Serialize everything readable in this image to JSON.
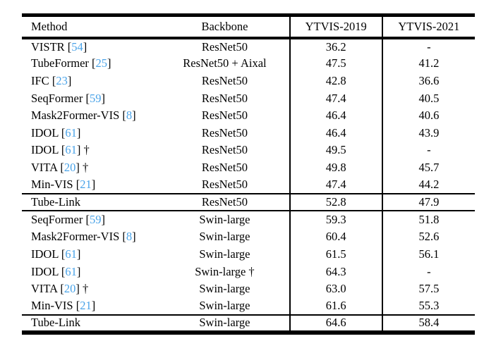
{
  "colors": {
    "text": "#000000",
    "background": "#ffffff",
    "rule": "#000000",
    "citation": "#4AA3E8"
  },
  "table": {
    "headers": [
      "Method",
      "Backbone",
      "YTVIS-2019",
      "YTVIS-2021"
    ],
    "missing_value": "-",
    "dagger_symbol": "†",
    "rows": [
      {
        "method": "VISTR",
        "cite": "54",
        "method_note": "",
        "backbone": "ResNet50",
        "backbone_note": "",
        "ytvis2019": "36.2",
        "ytvis2021": "-",
        "rule_above": false
      },
      {
        "method": "TubeFormer",
        "cite": "25",
        "method_note": "",
        "backbone": "ResNet50 + Aixal",
        "backbone_note": "",
        "ytvis2019": "47.5",
        "ytvis2021": "41.2",
        "rule_above": false
      },
      {
        "method": "IFC",
        "cite": "23",
        "method_note": "",
        "backbone": "ResNet50",
        "backbone_note": "",
        "ytvis2019": "42.8",
        "ytvis2021": "36.6",
        "rule_above": false
      },
      {
        "method": "SeqFormer",
        "cite": "59",
        "method_note": "",
        "backbone": "ResNet50",
        "backbone_note": "",
        "ytvis2019": "47.4",
        "ytvis2021": "40.5",
        "rule_above": false
      },
      {
        "method": "Mask2Former-VIS",
        "cite": "8",
        "method_note": "",
        "backbone": "ResNet50",
        "backbone_note": "",
        "ytvis2019": "46.4",
        "ytvis2021": "40.6",
        "rule_above": false
      },
      {
        "method": "IDOL",
        "cite": "61",
        "method_note": "",
        "backbone": "ResNet50",
        "backbone_note": "",
        "ytvis2019": "46.4",
        "ytvis2021": "43.9",
        "rule_above": false
      },
      {
        "method": "IDOL",
        "cite": "61",
        "method_note": "†",
        "backbone": "ResNet50",
        "backbone_note": "",
        "ytvis2019": "49.5",
        "ytvis2021": "-",
        "rule_above": false
      },
      {
        "method": "VITA",
        "cite": "20",
        "method_note": "†",
        "backbone": "ResNet50",
        "backbone_note": "",
        "ytvis2019": "49.8",
        "ytvis2021": "45.7",
        "rule_above": false
      },
      {
        "method": "Min-VIS",
        "cite": "21",
        "method_note": "",
        "backbone": "ResNet50",
        "backbone_note": "",
        "ytvis2019": "47.4",
        "ytvis2021": "44.2",
        "rule_above": false
      },
      {
        "method": "Tube-Link",
        "cite": null,
        "method_note": "",
        "backbone": "ResNet50",
        "backbone_note": "",
        "ytvis2019": "52.8",
        "ytvis2021": "47.9",
        "rule_above": true
      },
      {
        "method": "SeqFormer",
        "cite": "59",
        "method_note": "",
        "backbone": "Swin-large",
        "backbone_note": "",
        "ytvis2019": "59.3",
        "ytvis2021": "51.8",
        "rule_above": true
      },
      {
        "method": "Mask2Former-VIS",
        "cite": "8",
        "method_note": "",
        "backbone": "Swin-large",
        "backbone_note": "",
        "ytvis2019": "60.4",
        "ytvis2021": "52.6",
        "rule_above": false
      },
      {
        "method": "IDOL",
        "cite": "61",
        "method_note": "",
        "backbone": "Swin-large",
        "backbone_note": "",
        "ytvis2019": "61.5",
        "ytvis2021": "56.1",
        "rule_above": false
      },
      {
        "method": "IDOL",
        "cite": "61",
        "method_note": "",
        "backbone": "Swin-large",
        "backbone_note": "†",
        "ytvis2019": "64.3",
        "ytvis2021": "-",
        "rule_above": false
      },
      {
        "method": "VITA",
        "cite": "20",
        "method_note": "†",
        "backbone": "Swin-large",
        "backbone_note": "",
        "ytvis2019": "63.0",
        "ytvis2021": "57.5",
        "rule_above": false
      },
      {
        "method": "Min-VIS",
        "cite": "21",
        "method_note": "",
        "backbone": "Swin-large",
        "backbone_note": "",
        "ytvis2019": "61.6",
        "ytvis2021": "55.3",
        "rule_above": false
      },
      {
        "method": "Tube-Link",
        "cite": null,
        "method_note": "",
        "backbone": "Swin-large",
        "backbone_note": "",
        "ytvis2019": "64.6",
        "ytvis2021": "58.4",
        "rule_above": true
      }
    ]
  }
}
